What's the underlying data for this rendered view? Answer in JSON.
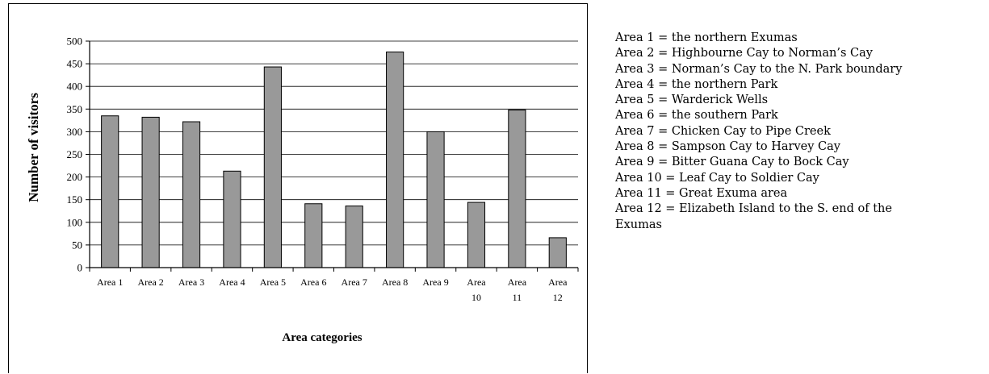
{
  "chart_data": {
    "type": "bar",
    "categories": [
      "Area 1",
      "Area 2",
      "Area 3",
      "Area 4",
      "Area 5",
      "Area 6",
      "Area 7",
      "Area 8",
      "Area 9",
      "Area 10",
      "Area 11",
      "Area 12"
    ],
    "values": [
      335,
      332,
      322,
      213,
      443,
      141,
      136,
      476,
      300,
      144,
      348,
      66
    ],
    "xlabel": "Area categories",
    "ylabel": "Number of visitors",
    "ylim": [
      0,
      500
    ],
    "yticks": [
      0,
      50,
      100,
      150,
      200,
      250,
      300,
      350,
      400,
      450,
      500
    ],
    "grid": "horizontal gridlines",
    "legend_placement": "right",
    "bar_color": "#999999",
    "bar_edge_color": "#000000"
  },
  "legend_lines": [
    "Area 1 = the northern Exumas",
    "Area 2 = Highbourne Cay to Norman’s Cay",
    "Area 3 = Norman’s Cay to the N. Park boundary",
    "Area 4 = the northern Park",
    "Area 5 = Warderick Wells",
    "Area 6 = the southern Park",
    "Area 7 = Chicken Cay to Pipe Creek",
    "Area 8 = Sampson Cay to Harvey Cay",
    "Area 9 = Bitter Guana Cay to Bock Cay",
    "Area 10 = Leaf Cay to Soldier Cay",
    "Area 11 = Great Exuma area",
    "Area 12 = Elizabeth Island to the S. end of the",
    "Exumas"
  ]
}
